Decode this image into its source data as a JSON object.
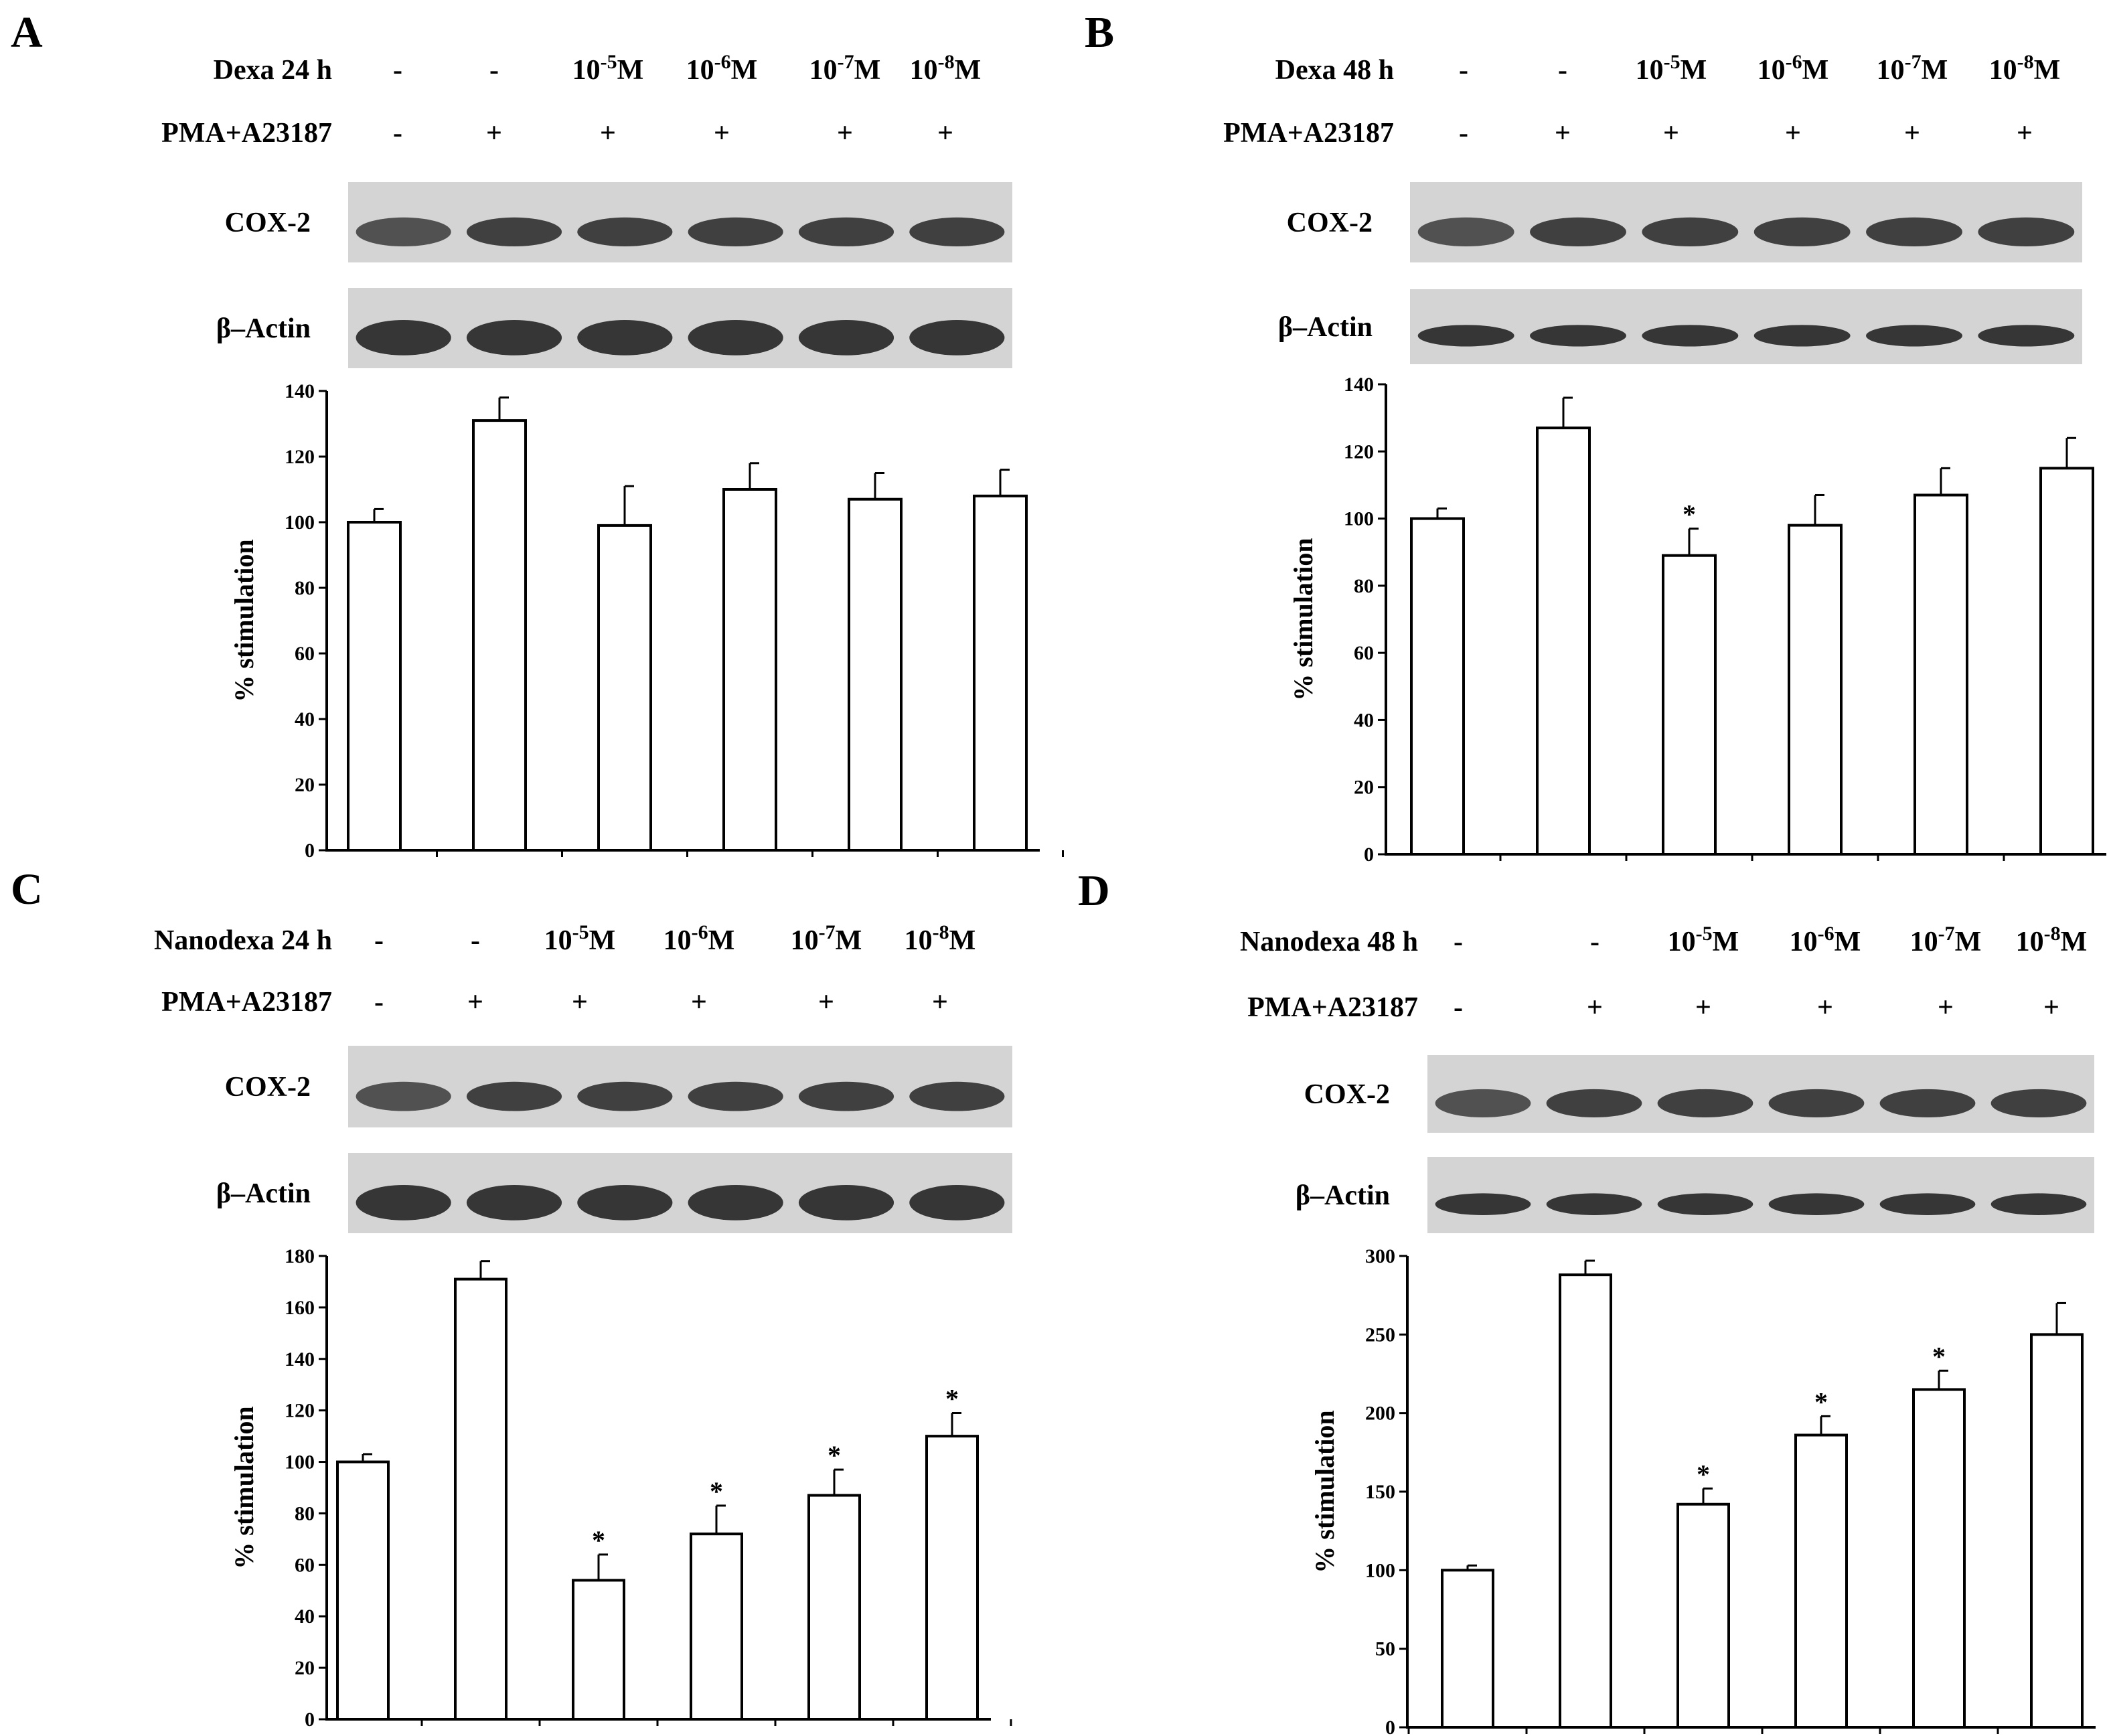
{
  "panels": [
    {
      "letter": "A",
      "row1_label": "Dexa 24 h",
      "row1_values": [
        "-",
        "-",
        "10-5M",
        "10-6M",
        "10-7M",
        "10-8M"
      ],
      "row2_label": "PMA+A23187",
      "row2_values": [
        "-",
        "+",
        "+",
        "+",
        "+",
        "+"
      ],
      "blot1_label": "COX-2",
      "blot2_label": "β–Actin",
      "blot_pattern": "variable"
    },
    {
      "letter": "B",
      "row1_label": "Dexa 48 h",
      "row1_values": [
        "-",
        "-",
        "10-5M",
        "10-6M",
        "10-7M",
        "10-8M"
      ],
      "row2_label": "PMA+A23187",
      "row2_values": [
        "-",
        "+",
        "+",
        "+",
        "+",
        "+"
      ],
      "blot1_label": "COX-2",
      "blot2_label": "β–Actin",
      "blot_pattern": "thin"
    },
    {
      "letter": "C",
      "row1_label": "Nanodexa 24 h",
      "row1_values": [
        "-",
        "-",
        "10-5M",
        "10-6M",
        "10-7M",
        "10-8M"
      ],
      "row2_label": "PMA+A23187",
      "row2_values": [
        "-",
        "+",
        "+",
        "+",
        "+",
        "+"
      ],
      "blot1_label": "COX-2",
      "blot2_label": "β–Actin",
      "blot_pattern": "variable"
    },
    {
      "letter": "D",
      "row1_label": "Nanodexa 48 h",
      "row1_values": [
        "-",
        "-",
        "10-5M",
        "10-6M",
        "10-7M",
        "10-8M"
      ],
      "row2_label": "PMA+A23187",
      "row2_values": [
        "-",
        "+",
        "+",
        "+",
        "+",
        "+"
      ],
      "blot1_label": "COX-2",
      "blot2_label": "β–Actin",
      "blot_pattern": "thin"
    }
  ],
  "chart_data": [
    {
      "type": "bar",
      "panel": "A",
      "categories": [
        "-/-",
        "-/+",
        "10-5M/+",
        "10-6M/+",
        "10-7M/+",
        "10-8M/+"
      ],
      "values": [
        100,
        131,
        99,
        110,
        107,
        108
      ],
      "errors": [
        4,
        7,
        12,
        8,
        8,
        8
      ],
      "significant": [
        false,
        false,
        false,
        false,
        false,
        false
      ],
      "ylabel": "% stimulation",
      "ylim": [
        0,
        140
      ],
      "yticks": [
        0,
        20,
        40,
        60,
        80,
        100,
        120,
        140
      ],
      "significance_marker": "*"
    },
    {
      "type": "bar",
      "panel": "B",
      "categories": [
        "-/-",
        "-/+",
        "10-5M/+",
        "10-6M/+",
        "10-7M/+",
        "10-8M/+"
      ],
      "values": [
        100,
        127,
        89,
        98,
        107,
        115
      ],
      "errors": [
        3,
        9,
        8,
        9,
        8,
        9
      ],
      "significant": [
        false,
        false,
        true,
        false,
        false,
        false
      ],
      "ylabel": "% stimulation",
      "ylim": [
        0,
        140
      ],
      "yticks": [
        0,
        20,
        40,
        60,
        80,
        100,
        120,
        140
      ],
      "significance_marker": "*"
    },
    {
      "type": "bar",
      "panel": "C",
      "categories": [
        "-/-",
        "-/+",
        "10-5M/+",
        "10-6M/+",
        "10-7M/+",
        "10-8M/+"
      ],
      "values": [
        100,
        171,
        54,
        72,
        87,
        110
      ],
      "errors": [
        3,
        7,
        10,
        11,
        10,
        9
      ],
      "significant": [
        false,
        false,
        true,
        true,
        true,
        true
      ],
      "ylabel": "% stimulation",
      "ylim": [
        0,
        180
      ],
      "yticks": [
        0,
        20,
        40,
        60,
        80,
        100,
        120,
        140,
        160,
        180
      ],
      "significance_marker": "*"
    },
    {
      "type": "bar",
      "panel": "D",
      "categories": [
        "-/-",
        "-/+",
        "10-5M/+",
        "10-6M/+",
        "10-7M/+",
        "10-8M/+"
      ],
      "values": [
        100,
        288,
        142,
        186,
        215,
        250
      ],
      "errors": [
        3,
        9,
        10,
        12,
        12,
        20
      ],
      "significant": [
        false,
        false,
        true,
        true,
        true,
        false
      ],
      "ylabel": "% stimulation",
      "ylim": [
        0,
        300
      ],
      "yticks": [
        0,
        50,
        100,
        150,
        200,
        250,
        300
      ],
      "significance_marker": "*"
    }
  ]
}
